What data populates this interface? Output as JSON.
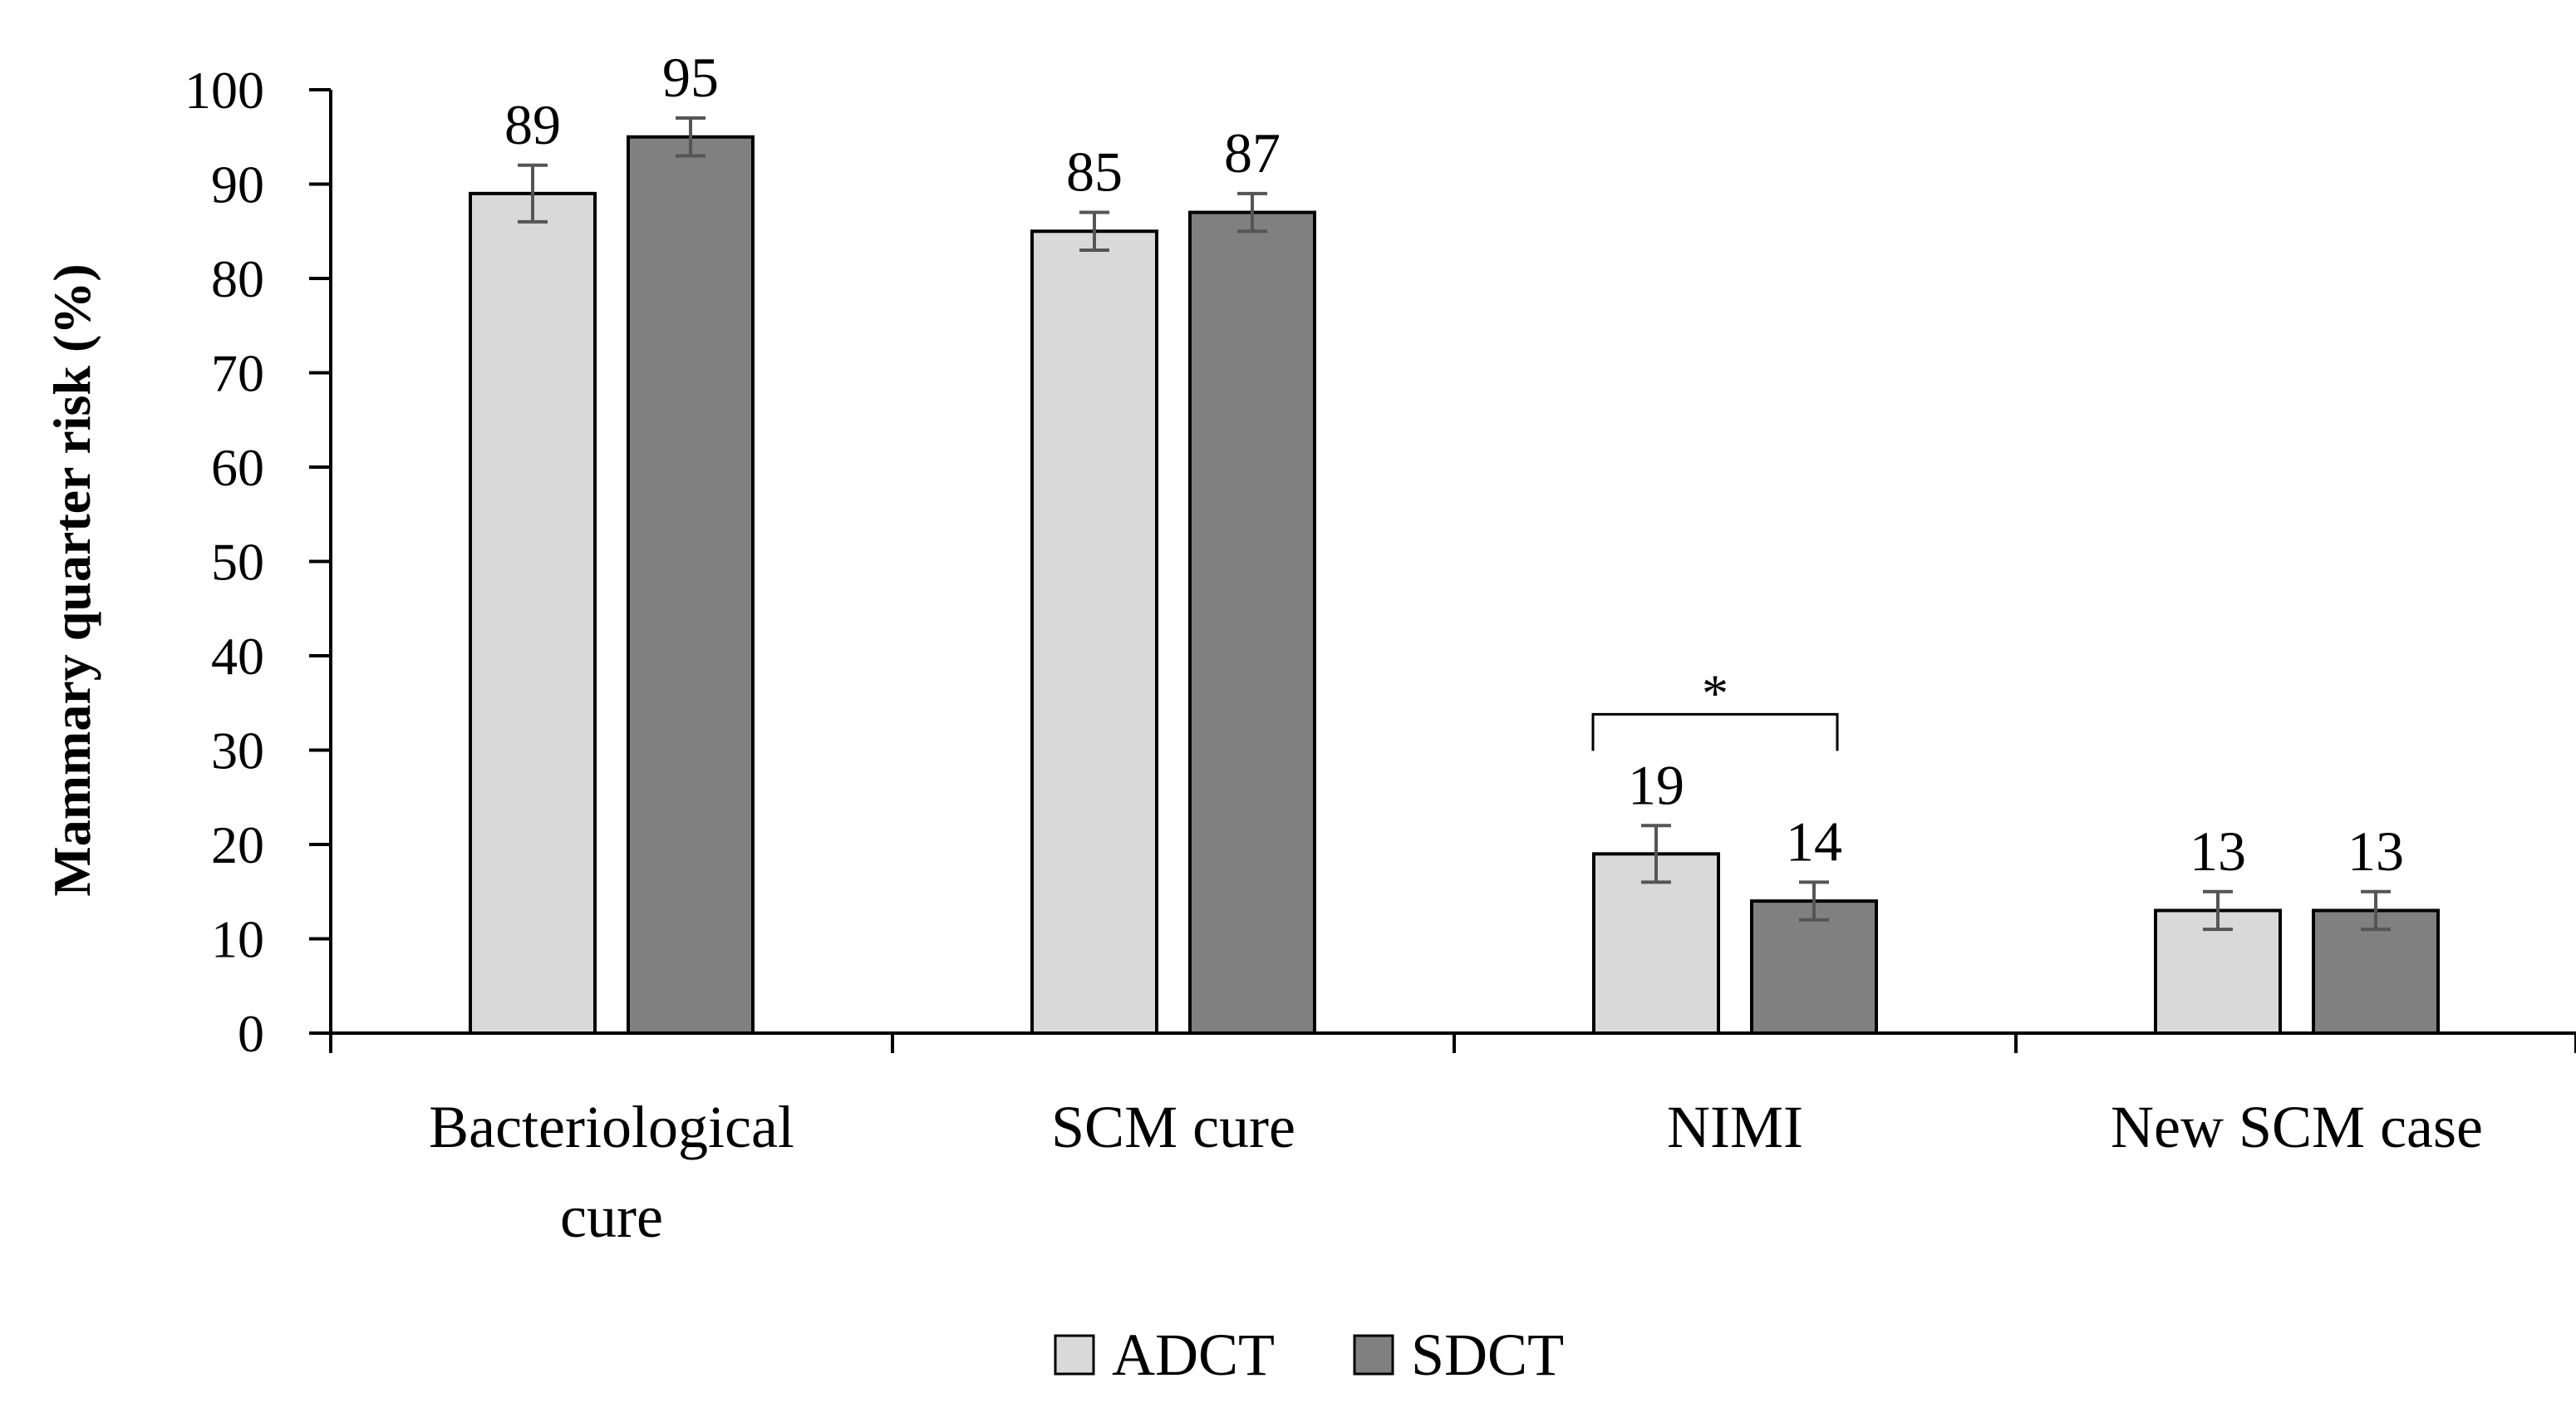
{
  "chart_data": {
    "type": "bar",
    "title": "",
    "xlabel": "",
    "ylabel": "Mammary quarter risk (%)",
    "ylim": [
      0,
      100
    ],
    "yticks": [
      0,
      10,
      20,
      30,
      40,
      50,
      60,
      70,
      80,
      90,
      100
    ],
    "grid": false,
    "categories": [
      [
        "Bacteriological",
        "cure"
      ],
      [
        "SCM cure"
      ],
      [
        "NIMI"
      ],
      [
        "New SCM case"
      ]
    ],
    "series": [
      {
        "name": "ADCT",
        "color": "#d9d9d9",
        "values": [
          89,
          85,
          19,
          13
        ],
        "error_low": [
          86,
          83,
          16,
          11
        ],
        "error_high": [
          92,
          87,
          22,
          15
        ],
        "labels": [
          "89",
          "85",
          "19",
          "13"
        ]
      },
      {
        "name": "SDCT",
        "color": "#808080",
        "values": [
          95,
          87,
          14,
          13
        ],
        "error_low": [
          93,
          85,
          12,
          11
        ],
        "error_high": [
          97,
          89,
          16,
          15
        ],
        "labels": [
          "95",
          "87",
          "14",
          "13"
        ]
      }
    ],
    "significance": [
      {
        "category_index": 2,
        "label": "*",
        "bracket_value": 33.8
      }
    ],
    "legend": {
      "position": "bottom-center",
      "entries": [
        "ADCT",
        "SDCT"
      ]
    }
  }
}
